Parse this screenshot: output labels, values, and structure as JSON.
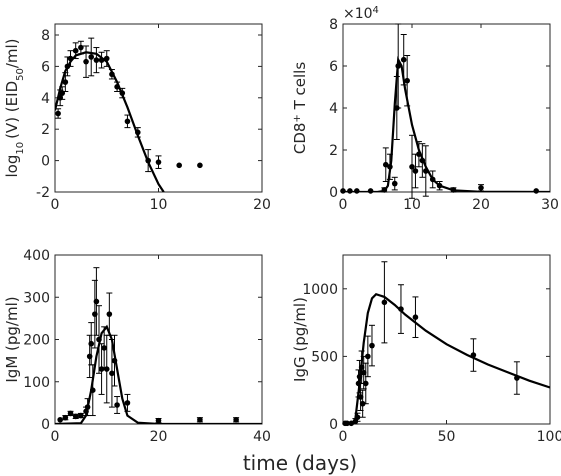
{
  "figure": {
    "xlabel": "time (days)"
  },
  "chart_data": [
    {
      "type": "scatter",
      "id": "virus",
      "ylabel_main": "log",
      "ylabel_sub": "10",
      "ylabel_mid": "(V) (EID",
      "ylabel_sub2": "50",
      "ylabel_end": "/ml)",
      "xlim": [
        0,
        20
      ],
      "ylim": [
        -2,
        8.7
      ],
      "xticks": [
        0,
        10,
        20
      ],
      "yticks": [
        -2,
        0,
        2,
        4,
        6,
        8
      ],
      "points": [
        {
          "x": 0.3,
          "y": 3.0,
          "err": 0.3
        },
        {
          "x": 0.5,
          "y": 4.0,
          "err": 0.5
        },
        {
          "x": 0.7,
          "y": 4.3,
          "err": 0.4
        },
        {
          "x": 1.0,
          "y": 5.0,
          "err": 0.6
        },
        {
          "x": 1.2,
          "y": 6.0,
          "err": 0.6
        },
        {
          "x": 1.5,
          "y": 6.5,
          "err": 0.5
        },
        {
          "x": 2.0,
          "y": 7.0,
          "err": 0.5
        },
        {
          "x": 2.5,
          "y": 7.2,
          "err": 0.4
        },
        {
          "x": 3.0,
          "y": 6.3,
          "err": 1.0
        },
        {
          "x": 3.5,
          "y": 6.6,
          "err": 1.2
        },
        {
          "x": 4.0,
          "y": 6.4,
          "err": 0.8
        },
        {
          "x": 4.5,
          "y": 6.4,
          "err": 0.5
        },
        {
          "x": 5.0,
          "y": 6.5,
          "err": 0.5
        },
        {
          "x": 5.5,
          "y": 5.5,
          "err": 0.3
        },
        {
          "x": 6.0,
          "y": 4.7,
          "err": 0.3
        },
        {
          "x": 6.5,
          "y": 4.3,
          "err": 0.3
        },
        {
          "x": 7.0,
          "y": 2.5,
          "err": 0.4
        },
        {
          "x": 8.0,
          "y": 1.8,
          "err": 0.3
        },
        {
          "x": 9.0,
          "y": 0.0,
          "err": 0.7
        },
        {
          "x": 10.0,
          "y": -0.1,
          "err": 0.4
        },
        {
          "x": 12.0,
          "y": -0.3,
          "err": 0
        },
        {
          "x": 14.0,
          "y": -0.3,
          "err": 0
        }
      ],
      "model": [
        [
          0,
          3.2
        ],
        [
          0.5,
          4.6
        ],
        [
          1,
          5.7
        ],
        [
          1.5,
          6.3
        ],
        [
          2,
          6.7
        ],
        [
          3,
          6.9
        ],
        [
          4,
          6.8
        ],
        [
          5,
          6.3
        ],
        [
          6,
          5.0
        ],
        [
          7,
          3.4
        ],
        [
          8,
          1.6
        ],
        [
          9,
          -0.1
        ],
        [
          10,
          -1.5
        ],
        [
          10.5,
          -2.0
        ]
      ]
    },
    {
      "type": "scatter",
      "id": "cd8",
      "ylabel_main": "CD8",
      "ylabel_sup": "+",
      "ylabel_end": " T cells",
      "multiplier_base": "×10",
      "multiplier_exp": "4",
      "xlim": [
        0,
        30
      ],
      "ylim": [
        0,
        8
      ],
      "xticks": [
        0,
        10,
        20,
        30
      ],
      "yticks": [
        0,
        2,
        4,
        6,
        8
      ],
      "points": [
        {
          "x": 0,
          "y": 0.05,
          "err": 0
        },
        {
          "x": 1,
          "y": 0.05,
          "err": 0
        },
        {
          "x": 2,
          "y": 0.05,
          "err": 0
        },
        {
          "x": 4,
          "y": 0.05,
          "err": 0
        },
        {
          "x": 6,
          "y": 0.1,
          "err": 0.1
        },
        {
          "x": 6.2,
          "y": 1.3,
          "err": 0.8
        },
        {
          "x": 6.8,
          "y": 1.2,
          "err": 0.6
        },
        {
          "x": 7.5,
          "y": 0.4,
          "err": 0.3
        },
        {
          "x": 7.8,
          "y": 4.0,
          "err": 1.5
        },
        {
          "x": 8.0,
          "y": 6.0,
          "err": 2.0
        },
        {
          "x": 8.8,
          "y": 6.3,
          "err": 1.2
        },
        {
          "x": 9.3,
          "y": 5.3,
          "err": 1.2
        },
        {
          "x": 10.0,
          "y": 1.2,
          "err": 1.5
        },
        {
          "x": 10.5,
          "y": 1.0,
          "err": 0.8
        },
        {
          "x": 11.0,
          "y": 1.8,
          "err": 0.6
        },
        {
          "x": 11.5,
          "y": 1.5,
          "err": 0.8
        },
        {
          "x": 12.0,
          "y": 1.0,
          "err": 1.2
        },
        {
          "x": 13.0,
          "y": 0.6,
          "err": 0.4
        },
        {
          "x": 14.0,
          "y": 0.3,
          "err": 0.2
        },
        {
          "x": 16.0,
          "y": 0.1,
          "err": 0.1
        },
        {
          "x": 20.0,
          "y": 0.2,
          "err": 0.15
        },
        {
          "x": 28.0,
          "y": 0.05,
          "err": 0
        }
      ],
      "model": [
        [
          0,
          0
        ],
        [
          5,
          0
        ],
        [
          6,
          0.05
        ],
        [
          6.5,
          0.3
        ],
        [
          7,
          1.5
        ],
        [
          7.5,
          4.2
        ],
        [
          8,
          6.3
        ],
        [
          8.5,
          6.0
        ],
        [
          9,
          4.9
        ],
        [
          10,
          3.2
        ],
        [
          11,
          2.0
        ],
        [
          12,
          1.2
        ],
        [
          13,
          0.6
        ],
        [
          14,
          0.3
        ],
        [
          16,
          0.08
        ],
        [
          20,
          0.01
        ],
        [
          30,
          0
        ]
      ]
    },
    {
      "type": "scatter",
      "id": "igm",
      "ylabel_main": "IgM (pg/ml)",
      "xlim": [
        0,
        40
      ],
      "ylim": [
        0,
        400
      ],
      "xticks": [
        0,
        20,
        40
      ],
      "yticks": [
        0,
        100,
        200,
        300,
        400
      ],
      "points": [
        {
          "x": 1,
          "y": 10,
          "err": 0
        },
        {
          "x": 2,
          "y": 15,
          "err": 5
        },
        {
          "x": 3,
          "y": 25,
          "err": 5
        },
        {
          "x": 4,
          "y": 18,
          "err": 5
        },
        {
          "x": 5,
          "y": 20,
          "err": 5
        },
        {
          "x": 6,
          "y": 30,
          "err": 10
        },
        {
          "x": 6.3,
          "y": 40,
          "err": 20
        },
        {
          "x": 6.7,
          "y": 160,
          "err": 50
        },
        {
          "x": 7,
          "y": 190,
          "err": 50
        },
        {
          "x": 7.3,
          "y": 80,
          "err": 60
        },
        {
          "x": 7.7,
          "y": 260,
          "err": 80
        },
        {
          "x": 8,
          "y": 290,
          "err": 80
        },
        {
          "x": 8.5,
          "y": 200,
          "err": 80
        },
        {
          "x": 9,
          "y": 130,
          "err": 60
        },
        {
          "x": 9.5,
          "y": 180,
          "err": 50
        },
        {
          "x": 10,
          "y": 130,
          "err": 80
        },
        {
          "x": 10.5,
          "y": 260,
          "err": 50
        },
        {
          "x": 11,
          "y": 120,
          "err": 80
        },
        {
          "x": 11.5,
          "y": 150,
          "err": 60
        },
        {
          "x": 12,
          "y": 45,
          "err": 20
        },
        {
          "x": 14,
          "y": 50,
          "err": 20
        },
        {
          "x": 20,
          "y": 8,
          "err": 5
        },
        {
          "x": 28,
          "y": 10,
          "err": 5
        },
        {
          "x": 35,
          "y": 10,
          "err": 5
        }
      ],
      "model": [
        [
          0,
          0
        ],
        [
          5,
          2
        ],
        [
          6,
          20
        ],
        [
          7,
          80
        ],
        [
          8,
          160
        ],
        [
          9,
          215
        ],
        [
          10,
          230
        ],
        [
          11,
          200
        ],
        [
          12,
          130
        ],
        [
          13,
          60
        ],
        [
          14,
          20
        ],
        [
          16,
          3
        ],
        [
          20,
          0
        ],
        [
          40,
          0
        ]
      ]
    },
    {
      "type": "scatter",
      "id": "igg",
      "ylabel_main": "IgG (pg/ml)",
      "xlim": [
        0,
        100
      ],
      "ylim": [
        0,
        1250
      ],
      "xticks": [
        0,
        50,
        100
      ],
      "yticks": [
        0,
        500,
        1000
      ],
      "points": [
        {
          "x": 1,
          "y": 5,
          "err": 0
        },
        {
          "x": 2,
          "y": 5,
          "err": 0
        },
        {
          "x": 4,
          "y": 5,
          "err": 0
        },
        {
          "x": 6,
          "y": 20,
          "err": 20
        },
        {
          "x": 7,
          "y": 50,
          "err": 30
        },
        {
          "x": 7.5,
          "y": 300,
          "err": 100
        },
        {
          "x": 8,
          "y": 350,
          "err": 120
        },
        {
          "x": 8.5,
          "y": 200,
          "err": 100
        },
        {
          "x": 9,
          "y": 420,
          "err": 120
        },
        {
          "x": 9.5,
          "y": 150,
          "err": 100
        },
        {
          "x": 10,
          "y": 380,
          "err": 120
        },
        {
          "x": 11,
          "y": 300,
          "err": 150
        },
        {
          "x": 12,
          "y": 500,
          "err": 150
        },
        {
          "x": 14,
          "y": 580,
          "err": 150
        },
        {
          "x": 20,
          "y": 900,
          "err": 300
        },
        {
          "x": 28,
          "y": 850,
          "err": 180
        },
        {
          "x": 35,
          "y": 790,
          "err": 150
        },
        {
          "x": 63,
          "y": 510,
          "err": 120
        },
        {
          "x": 84,
          "y": 340,
          "err": 120
        }
      ],
      "model": [
        [
          0,
          0
        ],
        [
          5,
          0
        ],
        [
          6,
          40
        ],
        [
          8,
          300
        ],
        [
          10,
          600
        ],
        [
          12,
          820
        ],
        [
          14,
          930
        ],
        [
          16,
          960
        ],
        [
          20,
          940
        ],
        [
          25,
          880
        ],
        [
          30,
          810
        ],
        [
          40,
          690
        ],
        [
          50,
          590
        ],
        [
          60,
          510
        ],
        [
          70,
          440
        ],
        [
          80,
          380
        ],
        [
          90,
          320
        ],
        [
          100,
          270
        ]
      ]
    }
  ]
}
